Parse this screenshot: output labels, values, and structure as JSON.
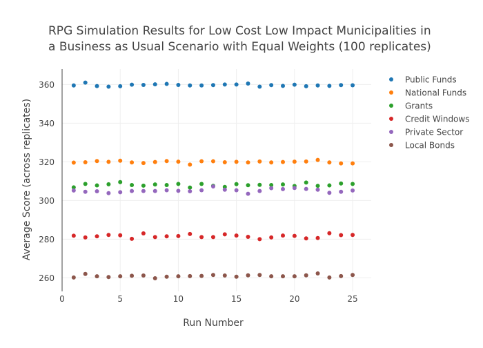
{
  "chart_data": {
    "type": "scatter",
    "title_lines": [
      "RPG Simulation Results for Low Cost Low Impact Municipalities in",
      "a Business as Usual Scenario with Equal Weights (100 replicates)"
    ],
    "xlabel": "Run Number",
    "ylabel": "Average Score (across replicates)",
    "xlim": [
      0,
      26.6
    ],
    "ylim": [
      253,
      368
    ],
    "xticks": [
      0,
      5,
      10,
      15,
      20,
      25
    ],
    "yticks": [
      260,
      280,
      300,
      320,
      340,
      360
    ],
    "grid": true,
    "legend_position": "top-right",
    "x": [
      1,
      2,
      3,
      4,
      5,
      6,
      7,
      8,
      9,
      10,
      11,
      12,
      13,
      14,
      15,
      16,
      17,
      18,
      19,
      20,
      21,
      22,
      23,
      24,
      25
    ],
    "series": [
      {
        "name": "Public Funds",
        "color": "#1f77b4",
        "values": [
          359.5,
          361.0,
          359.2,
          358.9,
          359.1,
          359.9,
          359.8,
          360.1,
          360.3,
          359.8,
          359.5,
          359.5,
          359.7,
          360.0,
          360.0,
          360.5,
          358.9,
          359.7,
          359.3,
          359.9,
          359.1,
          359.5,
          359.3,
          359.7,
          359.6
        ]
      },
      {
        "name": "National Funds",
        "color": "#ff7f0e",
        "values": [
          319.6,
          319.8,
          320.4,
          320.0,
          320.6,
          319.7,
          319.4,
          319.9,
          320.4,
          320.1,
          318.6,
          320.3,
          320.3,
          319.8,
          320.0,
          319.7,
          320.2,
          319.7,
          319.9,
          320.1,
          320.2,
          321.0,
          319.7,
          319.2,
          319.2
        ]
      },
      {
        "name": "Grants",
        "color": "#2ca02c",
        "values": [
          306.8,
          308.6,
          307.8,
          308.4,
          309.5,
          308.0,
          307.7,
          308.3,
          308.0,
          308.6,
          306.7,
          308.6,
          307.6,
          307.0,
          308.5,
          307.9,
          308.1,
          308.0,
          308.3,
          307.5,
          309.3,
          307.6,
          307.8,
          308.8,
          308.6
        ]
      },
      {
        "name": "Credit Windows",
        "color": "#d62728",
        "values": [
          281.8,
          280.9,
          281.5,
          282.2,
          282.0,
          280.2,
          283.0,
          281.1,
          281.5,
          281.6,
          282.7,
          281.1,
          281.1,
          282.5,
          281.9,
          281.2,
          280.0,
          280.9,
          281.9,
          281.7,
          280.4,
          280.6,
          283.1,
          282.1,
          282.2
        ]
      },
      {
        "name": "Private Sector",
        "color": "#9467bd",
        "values": [
          305.2,
          304.5,
          304.8,
          303.8,
          304.3,
          304.9,
          304.9,
          304.9,
          305.3,
          305.0,
          304.8,
          305.3,
          307.3,
          305.6,
          305.3,
          303.5,
          304.9,
          306.4,
          305.9,
          306.5,
          306.0,
          305.6,
          304.0,
          304.5,
          305.2
        ]
      },
      {
        "name": "Local Bonds",
        "color": "#8c564b",
        "values": [
          260.2,
          262.0,
          260.8,
          260.4,
          260.8,
          261.1,
          261.2,
          259.8,
          260.6,
          260.8,
          260.9,
          261.0,
          261.5,
          261.2,
          260.6,
          261.3,
          261.5,
          260.8,
          260.8,
          260.8,
          261.3,
          262.3,
          260.2,
          260.9,
          261.5
        ]
      }
    ]
  }
}
